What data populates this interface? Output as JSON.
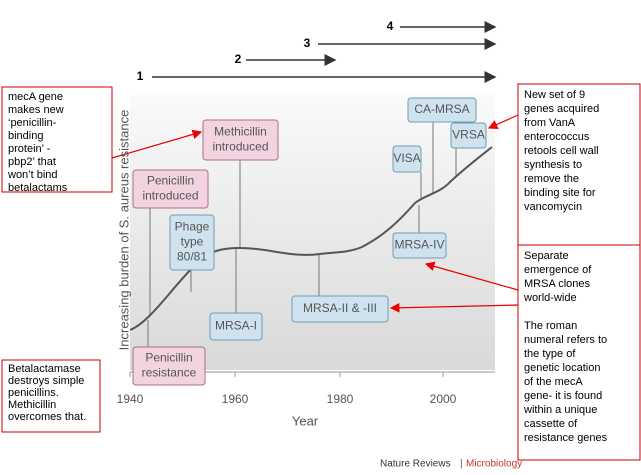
{
  "arrows": [
    "1",
    "2",
    "3",
    "4"
  ],
  "y_axis_label": "Increasing burden of S. aureus resistance",
  "x_axis_label": "Year",
  "x_ticks": [
    "1940",
    "1960",
    "1980",
    "2000"
  ],
  "boxes": [
    {
      "lines": [
        "Methicillin",
        "introduced"
      ]
    },
    {
      "lines": [
        "Penicillin",
        "introduced"
      ]
    },
    {
      "lines": [
        "Penicillin",
        "resistance"
      ]
    },
    {
      "lines": [
        "Phage",
        "type",
        "80/81"
      ]
    },
    {
      "lines": [
        "MRSA-I"
      ]
    },
    {
      "lines": [
        "MRSA-II & -III"
      ]
    },
    {
      "lines": [
        "MRSA-IV"
      ]
    },
    {
      "lines": [
        "VISA"
      ]
    },
    {
      "lines": [
        "CA-MRSA"
      ]
    },
    {
      "lines": [
        "VRSA"
      ]
    }
  ],
  "notes": [
    {
      "paragraphs": [
        [
          "mecA gene",
          "makes new",
          "‘penicillin-",
          "binding",
          "protein’ -",
          "pbp2’ that",
          "won’t bind",
          "betalactams"
        ]
      ]
    },
    {
      "paragraphs": [
        [
          "Betalactamase",
          "destroys simple",
          "penicillins.",
          "Methicillin",
          "overcomes that."
        ]
      ]
    },
    {
      "paragraphs": [
        [
          "New set of 9",
          "genes acquired",
          "from VanA",
          "enterococcus",
          "retools cell wall",
          "synthesis to",
          "remove the",
          "binding site for",
          "vancomycin"
        ]
      ]
    },
    {
      "paragraphs": [
        [
          "Separate",
          "emergence of",
          "MRSA clones",
          "world-wide"
        ],
        [
          "The roman",
          "numeral refers to",
          "the type of",
          "genetic location",
          "of the mecA",
          "gene- it is found",
          "within a unique",
          "cassette of",
          "resistance genes"
        ]
      ]
    }
  ],
  "footer": {
    "journal": "Nature Reviews",
    "section": "Microbiology"
  }
}
